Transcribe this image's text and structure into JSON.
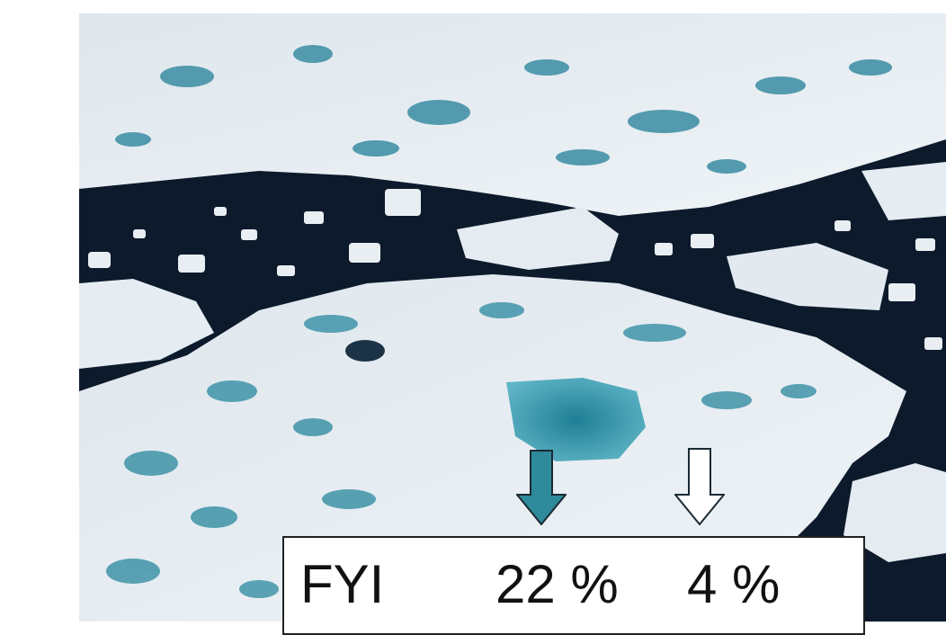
{
  "image": {
    "description_icons": [
      "sea-ice-photo",
      "down-arrow-icon"
    ],
    "colors": {
      "ocean": "#0c1a2c",
      "ice": "#e6edf2",
      "melt_pond": "#2f8aa0",
      "arrow_teal": "#2f8a9b",
      "arrow_white": "#ffffff"
    }
  },
  "label": {
    "category": "FYI",
    "value_1": "22 %",
    "value_2": "4 %"
  }
}
